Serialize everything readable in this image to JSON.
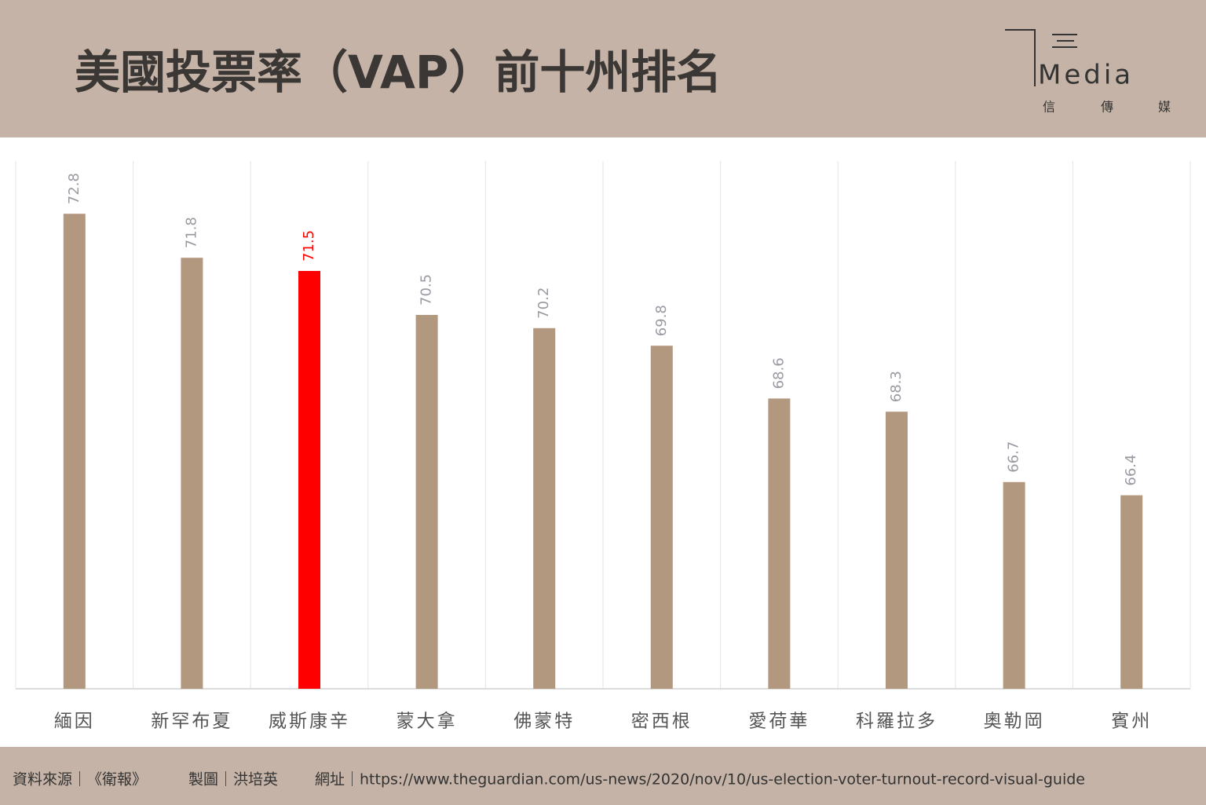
{
  "chart_data": {
    "type": "bar",
    "title": "美國投票率（VAP）前十州排名",
    "categories": [
      "緬因",
      "新罕布夏",
      "威斯康辛",
      "蒙大拿",
      "佛蒙特",
      "密西根",
      "愛荷華",
      "科羅拉多",
      "奧勒岡",
      "賓州"
    ],
    "values": [
      72.8,
      71.8,
      71.5,
      70.5,
      70.2,
      69.8,
      68.6,
      68.3,
      66.7,
      66.4
    ],
    "color": "#b39880",
    "colors": [
      "#b39880",
      "#b39880",
      "#ff0000",
      "#b39880",
      "#b39880",
      "#b39880",
      "#b39880",
      "#b39880",
      "#b39880",
      "#b39880"
    ],
    "ylim": [
      62,
      74
    ],
    "grid": true
  },
  "logo": {
    "text": "Media",
    "subtitle": [
      "信",
      "傳",
      "媒"
    ]
  },
  "footer": [
    "資料來源｜《衛報》",
    "製圖｜洪培英",
    "網址｜https://www.theguardian.com/us-news/2020/nov/10/us-election-voter-turnout-record-visual-guide"
  ]
}
